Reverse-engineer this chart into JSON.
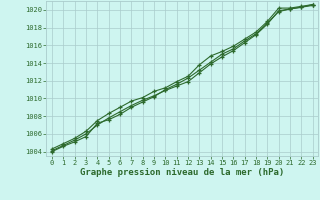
{
  "x": [
    0,
    1,
    2,
    3,
    4,
    5,
    6,
    7,
    8,
    9,
    10,
    11,
    12,
    13,
    14,
    15,
    16,
    17,
    18,
    19,
    20,
    21,
    22,
    23
  ],
  "line1": [
    1004.1,
    1004.7,
    1005.3,
    1006.0,
    1007.0,
    1007.8,
    1008.5,
    1009.2,
    1009.8,
    1010.3,
    1010.9,
    1011.4,
    1011.9,
    1012.9,
    1013.9,
    1014.7,
    1015.4,
    1016.3,
    1017.2,
    1018.4,
    1019.9,
    1020.1,
    1020.3,
    1020.5
  ],
  "line2": [
    1004.3,
    1004.9,
    1005.5,
    1006.3,
    1007.5,
    1008.3,
    1009.0,
    1009.7,
    1010.1,
    1010.8,
    1011.2,
    1011.9,
    1012.5,
    1013.8,
    1014.8,
    1015.3,
    1015.9,
    1016.7,
    1017.5,
    1018.7,
    1020.2,
    1020.2,
    1020.4,
    1020.6
  ],
  "line3": [
    1004.0,
    1004.6,
    1005.1,
    1005.7,
    1007.2,
    1007.6,
    1008.2,
    1009.0,
    1009.6,
    1010.2,
    1011.0,
    1011.6,
    1012.3,
    1013.2,
    1014.1,
    1015.0,
    1015.6,
    1016.5,
    1017.3,
    1018.5,
    1019.8,
    1020.1,
    1020.3,
    1020.6
  ],
  "bg_color": "#cef5f0",
  "grid_color": "#aacccc",
  "line_color": "#2d6a2d",
  "xlabel": "Graphe pression niveau de la mer (hPa)",
  "ylim_min": 1003.5,
  "ylim_max": 1021.0,
  "yticks": [
    1004,
    1006,
    1008,
    1010,
    1012,
    1014,
    1016,
    1018,
    1020
  ],
  "xticks": [
    0,
    1,
    2,
    3,
    4,
    5,
    6,
    7,
    8,
    9,
    10,
    11,
    12,
    13,
    14,
    15,
    16,
    17,
    18,
    19,
    20,
    21,
    22,
    23
  ],
  "marker": "+",
  "marker_size": 3.5,
  "linewidth": 0.8
}
